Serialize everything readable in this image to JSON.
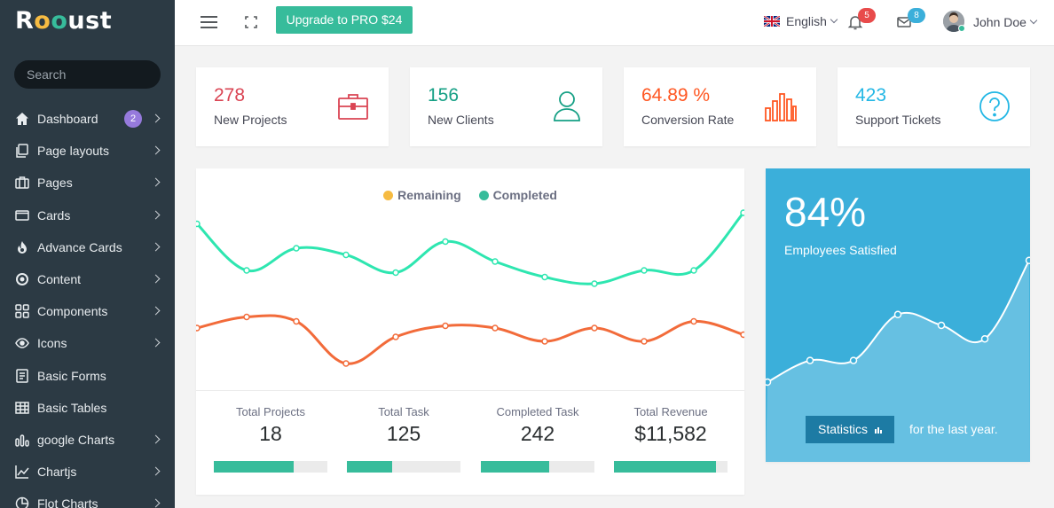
{
  "brand": {
    "name_prefix": "R",
    "name_o1": "o",
    "name_o2": "o",
    "name_suffix": "ust"
  },
  "sidebar": {
    "search_placeholder": "Search",
    "items": [
      {
        "label": "Dashboard",
        "icon": "home-icon",
        "badge": "2",
        "chevron": true
      },
      {
        "label": "Page layouts",
        "icon": "copy-icon",
        "chevron": true
      },
      {
        "label": "Pages",
        "icon": "briefcase-icon",
        "chevron": true
      },
      {
        "label": "Cards",
        "icon": "card-icon",
        "chevron": true
      },
      {
        "label": "Advance Cards",
        "icon": "fire-icon",
        "chevron": true
      },
      {
        "label": "Content",
        "icon": "compass-icon",
        "chevron": true
      },
      {
        "label": "Components",
        "icon": "grid-icon",
        "chevron": true
      },
      {
        "label": "Icons",
        "icon": "eye-icon",
        "chevron": true
      },
      {
        "label": "Basic Forms",
        "icon": "document-icon",
        "chevron": false
      },
      {
        "label": "Basic Tables",
        "icon": "table-icon",
        "chevron": false
      },
      {
        "label": "google Charts",
        "icon": "bar-chart-icon",
        "chevron": true
      },
      {
        "label": "Chartjs",
        "icon": "line-chart-icon",
        "chevron": true
      },
      {
        "label": "Flot Charts",
        "icon": "pie-chart-icon",
        "chevron": true
      }
    ]
  },
  "topbar": {
    "upgrade_label": "Upgrade to PRO $24",
    "language": "English",
    "notifications_count": "5",
    "messages_count": "8",
    "user_name": "John Doe"
  },
  "stats": [
    {
      "value": "278",
      "label": "New Projects",
      "color": "#da4453",
      "icon": "briefcase-icon"
    },
    {
      "value": "156",
      "label": "New Clients",
      "color": "#16a085",
      "icon": "user-icon"
    },
    {
      "value": "64.89 %",
      "label": "Conversion Rate",
      "color": "#ff5722",
      "icon": "bar-chart-icon"
    },
    {
      "value": "423",
      "label": "Support Tickets",
      "color": "#23b7e5",
      "icon": "question-icon"
    }
  ],
  "colors": {
    "remaining": "#f6bb42",
    "completed": "#37bc9b",
    "line_remaining": "#f26b3a",
    "line_completed": "#2ee6b0",
    "accent": "#37bc9b",
    "blue_card": "#3bafda"
  },
  "chart_data": [
    {
      "type": "line",
      "series": [
        {
          "name": "Completed",
          "values": [
            75,
            54,
            64,
            61,
            53,
            67,
            58,
            51,
            48,
            54,
            54,
            80
          ]
        },
        {
          "name": "Remaining",
          "values": [
            28,
            33,
            31,
            12,
            24,
            29,
            28,
            22,
            28,
            22,
            31,
            25
          ]
        }
      ],
      "legend": [
        "Remaining",
        "Completed"
      ],
      "ylim": [
        0,
        100
      ],
      "grid": false,
      "legend_position": "top-center"
    },
    {
      "type": "area",
      "values": [
        10,
        18,
        18,
        35,
        31,
        26,
        55
      ],
      "ylim": [
        0,
        100
      ],
      "grid": false
    }
  ],
  "kpis": [
    {
      "label": "Total Projects",
      "value": "18",
      "progress": 0.7
    },
    {
      "label": "Total Task",
      "value": "125",
      "progress": 0.4
    },
    {
      "label": "Completed Task",
      "value": "242",
      "progress": 0.6
    },
    {
      "label": "Total Revenue",
      "value": "$11,582",
      "progress": 0.9
    }
  ],
  "satisfaction": {
    "value": "84%",
    "label": "Employees Satisfied",
    "button_label": "Statistics",
    "caption": "for the last year."
  }
}
